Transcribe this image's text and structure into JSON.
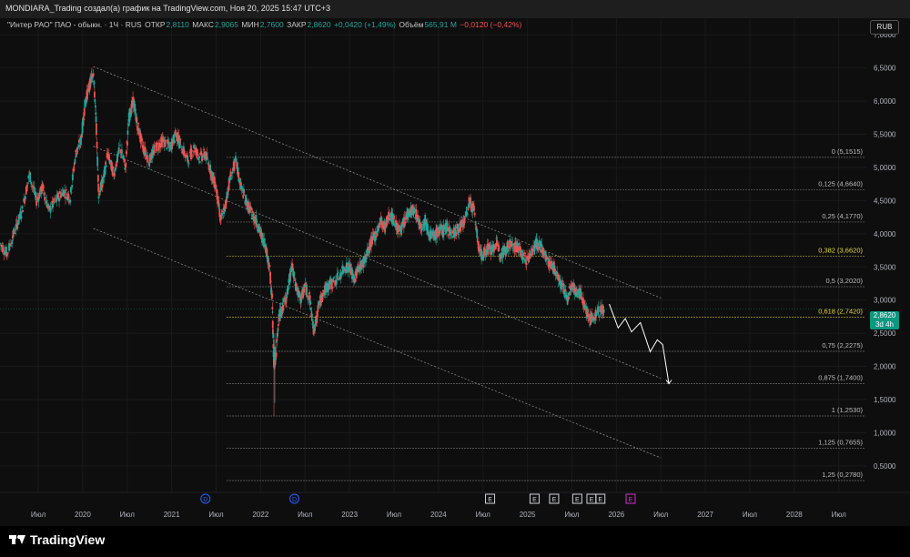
{
  "header": {
    "title": "MONDIARA_Trading создал(а) график на TradingView.com, Ноя 20, 2025 15:47 UTC+3"
  },
  "legend": {
    "symbol": "\"Интер РАО\" ПАО - обыкн. · 1Ч · RUS",
    "open_label": "ОТКР",
    "open": "2,8110",
    "high_label": "МАКС",
    "high": "2,9065",
    "low_label": "МИН",
    "low": "2,7600",
    "close_label": "ЗАКР",
    "close": "2,8620",
    "change": "+0,0420 (+1,49%)",
    "volume_label": "Объём",
    "volume": "565,91 M",
    "volume_change": "−0,0120 (−0,42%)"
  },
  "currency_button": "RUB",
  "price_tag": {
    "value": "2,8620",
    "countdown": "3d 4h"
  },
  "colors": {
    "up": "#26a69a",
    "down": "#ef5350",
    "background": "#0e0e0e",
    "fib_key": "#e6d93a"
  },
  "brand": {
    "name": "TradingView",
    "icon": "tradingview-logo-icon"
  },
  "chart_data": {
    "type": "candlestick",
    "y_axis": {
      "ticks": [
        "7,0000",
        "6,5000",
        "6,0000",
        "5,5000",
        "5,0000",
        "4,5000",
        "4,0000",
        "3,5000",
        "3,0000",
        "2,5000",
        "2,0000",
        "1,5000",
        "1,0000",
        "0,5000"
      ],
      "tick_values": [
        7.0,
        6.5,
        6.0,
        5.5,
        5.0,
        4.5,
        4.0,
        3.5,
        3.0,
        2.5,
        2.0,
        1.5,
        1.0,
        0.5
      ],
      "ylim": [
        0.1,
        7.25
      ],
      "currency": "RUB"
    },
    "x_axis": {
      "labels": [
        "Июл",
        "2020",
        "Июл",
        "2021",
        "Июл",
        "2022",
        "Июл",
        "2023",
        "Июл",
        "2024",
        "Июл",
        "2025",
        "Июл",
        "2026",
        "Июл",
        "2027",
        "Июл",
        "2028",
        "Июл"
      ],
      "label_dates": [
        2019.5,
        2020.0,
        2020.5,
        2021.0,
        2021.5,
        2022.0,
        2022.5,
        2023.0,
        2023.5,
        2024.0,
        2024.5,
        2025.0,
        2025.5,
        2026.0,
        2026.5,
        2027.0,
        2027.5,
        2028.0,
        2028.5
      ],
      "xlim": [
        2019.07,
        2028.81
      ]
    },
    "fib_levels": [
      {
        "ratio": "0",
        "price": "5,1515",
        "value": 5.1515,
        "key": false
      },
      {
        "ratio": "0,125",
        "price": "4,6640",
        "value": 4.664,
        "key": false
      },
      {
        "ratio": "0,25",
        "price": "4,1770",
        "value": 4.177,
        "key": false
      },
      {
        "ratio": "0,382",
        "price": "3,6620",
        "value": 3.662,
        "key": true
      },
      {
        "ratio": "0,5",
        "price": "3,2020",
        "value": 3.202,
        "key": false
      },
      {
        "ratio": "0,618",
        "price": "2,7420",
        "value": 2.742,
        "key": true
      },
      {
        "ratio": "0,75",
        "price": "2,2275",
        "value": 2.2275,
        "key": false
      },
      {
        "ratio": "0,875",
        "price": "1,7400",
        "value": 1.74,
        "key": false
      },
      {
        "ratio": "1",
        "price": "1,2530",
        "value": 1.253,
        "key": false
      },
      {
        "ratio": "1,125",
        "price": "0,7655",
        "value": 0.7655,
        "key": false
      },
      {
        "ratio": "1,25",
        "price": "0,2780",
        "value": 0.278,
        "key": false
      }
    ],
    "channel_lines": [
      {
        "start": [
          2020.12,
          6.52
        ],
        "end": [
          2026.5,
          3.03
        ]
      },
      {
        "start": [
          2020.12,
          5.32
        ],
        "end": [
          2026.5,
          1.82
        ]
      },
      {
        "start": [
          2020.12,
          4.08
        ],
        "end": [
          2026.5,
          0.62
        ]
      }
    ],
    "projection_path": [
      [
        2025.92,
        2.94
      ],
      [
        2026.02,
        2.58
      ],
      [
        2026.1,
        2.72
      ],
      [
        2026.17,
        2.52
      ],
      [
        2026.27,
        2.66
      ],
      [
        2026.38,
        2.22
      ],
      [
        2026.46,
        2.4
      ],
      [
        2026.52,
        2.33
      ],
      [
        2026.59,
        1.74
      ]
    ],
    "price_path": [
      [
        2019.07,
        3.85
      ],
      [
        2019.15,
        3.7
      ],
      [
        2019.25,
        4.1
      ],
      [
        2019.32,
        4.35
      ],
      [
        2019.4,
        4.9
      ],
      [
        2019.48,
        4.5
      ],
      [
        2019.55,
        4.7
      ],
      [
        2019.62,
        4.35
      ],
      [
        2019.7,
        4.5
      ],
      [
        2019.78,
        4.65
      ],
      [
        2019.86,
        4.55
      ],
      [
        2019.92,
        5.2
      ],
      [
        2019.98,
        5.4
      ],
      [
        2020.03,
        6.0
      ],
      [
        2020.08,
        6.25
      ],
      [
        2020.12,
        6.45
      ],
      [
        2020.15,
        5.7
      ],
      [
        2020.18,
        4.6
      ],
      [
        2020.23,
        4.8
      ],
      [
        2020.28,
        5.2
      ],
      [
        2020.35,
        4.9
      ],
      [
        2020.42,
        5.3
      ],
      [
        2020.48,
        5.0
      ],
      [
        2020.52,
        5.75
      ],
      [
        2020.57,
        6.0
      ],
      [
        2020.62,
        5.6
      ],
      [
        2020.68,
        5.3
      ],
      [
        2020.75,
        5.1
      ],
      [
        2020.82,
        5.3
      ],
      [
        2020.9,
        5.4
      ],
      [
        2020.98,
        5.3
      ],
      [
        2021.05,
        5.5
      ],
      [
        2021.1,
        5.35
      ],
      [
        2021.18,
        5.1
      ],
      [
        2021.25,
        5.3
      ],
      [
        2021.32,
        5.15
      ],
      [
        2021.38,
        5.2
      ],
      [
        2021.45,
        4.9
      ],
      [
        2021.5,
        4.7
      ],
      [
        2021.55,
        4.2
      ],
      [
        2021.6,
        4.4
      ],
      [
        2021.65,
        4.8
      ],
      [
        2021.72,
        5.1
      ],
      [
        2021.78,
        4.7
      ],
      [
        2021.85,
        4.45
      ],
      [
        2021.9,
        4.3
      ],
      [
        2021.95,
        4.2
      ],
      [
        2022.0,
        4.0
      ],
      [
        2022.05,
        3.85
      ],
      [
        2022.1,
        3.5
      ],
      [
        2022.13,
        3.0
      ],
      [
        2022.15,
        2.0
      ],
      [
        2022.17,
        2.1
      ],
      [
        2022.2,
        2.7
      ],
      [
        2022.25,
        2.9
      ],
      [
        2022.3,
        3.1
      ],
      [
        2022.35,
        3.5
      ],
      [
        2022.4,
        3.2
      ],
      [
        2022.45,
        3.0
      ],
      [
        2022.5,
        3.2
      ],
      [
        2022.55,
        3.05
      ],
      [
        2022.6,
        2.5
      ],
      [
        2022.65,
        2.9
      ],
      [
        2022.7,
        3.1
      ],
      [
        2022.75,
        3.2
      ],
      [
        2022.8,
        3.25
      ],
      [
        2022.88,
        3.35
      ],
      [
        2022.95,
        3.5
      ],
      [
        2023.0,
        3.5
      ],
      [
        2023.05,
        3.3
      ],
      [
        2023.1,
        3.5
      ],
      [
        2023.15,
        3.55
      ],
      [
        2023.2,
        3.7
      ],
      [
        2023.25,
        3.9
      ],
      [
        2023.3,
        4.0
      ],
      [
        2023.35,
        4.2
      ],
      [
        2023.4,
        4.1
      ],
      [
        2023.45,
        4.3
      ],
      [
        2023.5,
        4.2
      ],
      [
        2023.55,
        4.05
      ],
      [
        2023.6,
        4.1
      ],
      [
        2023.65,
        4.3
      ],
      [
        2023.7,
        4.35
      ],
      [
        2023.75,
        4.3
      ],
      [
        2023.8,
        4.1
      ],
      [
        2023.85,
        4.2
      ],
      [
        2023.9,
        4.0
      ],
      [
        2023.95,
        3.95
      ],
      [
        2024.0,
        4.05
      ],
      [
        2024.05,
        4.05
      ],
      [
        2024.1,
        4.1
      ],
      [
        2024.15,
        4.0
      ],
      [
        2024.2,
        4.05
      ],
      [
        2024.25,
        4.1
      ],
      [
        2024.3,
        4.2
      ],
      [
        2024.35,
        4.5
      ],
      [
        2024.4,
        4.35
      ],
      [
        2024.45,
        3.8
      ],
      [
        2024.5,
        3.65
      ],
      [
        2024.55,
        3.8
      ],
      [
        2024.6,
        3.75
      ],
      [
        2024.65,
        3.85
      ],
      [
        2024.7,
        3.7
      ],
      [
        2024.75,
        3.75
      ],
      [
        2024.8,
        3.85
      ],
      [
        2024.85,
        3.8
      ],
      [
        2024.9,
        3.8
      ],
      [
        2024.95,
        3.65
      ],
      [
        2025.0,
        3.6
      ],
      [
        2025.05,
        3.75
      ],
      [
        2025.1,
        3.85
      ],
      [
        2025.15,
        3.8
      ],
      [
        2025.2,
        3.65
      ],
      [
        2025.25,
        3.55
      ],
      [
        2025.3,
        3.5
      ],
      [
        2025.35,
        3.3
      ],
      [
        2025.4,
        3.2
      ],
      [
        2025.45,
        3.0
      ],
      [
        2025.5,
        3.25
      ],
      [
        2025.55,
        3.1
      ],
      [
        2025.6,
        3.1
      ],
      [
        2025.65,
        2.9
      ],
      [
        2025.7,
        2.7
      ],
      [
        2025.75,
        2.75
      ],
      [
        2025.8,
        2.82
      ],
      [
        2025.86,
        2.86
      ]
    ],
    "events": [
      {
        "label": "D",
        "x": 2021.38,
        "color": "#2962ff"
      },
      {
        "label": "D",
        "x": 2022.38,
        "color": "#2962ff"
      },
      {
        "label": "E",
        "x": 2024.58,
        "color": "#d1d4dc"
      },
      {
        "label": "E",
        "x": 2025.08,
        "color": "#d1d4dc"
      },
      {
        "label": "E",
        "x": 2025.3,
        "color": "#d1d4dc"
      },
      {
        "label": "E",
        "x": 2025.56,
        "color": "#d1d4dc"
      },
      {
        "label": "E",
        "x": 2025.72,
        "color": "#d1d4dc"
      },
      {
        "label": "E",
        "x": 2025.82,
        "color": "#d1d4dc"
      },
      {
        "label": "E",
        "x": 2026.16,
        "color": "#cc33cc"
      }
    ]
  }
}
